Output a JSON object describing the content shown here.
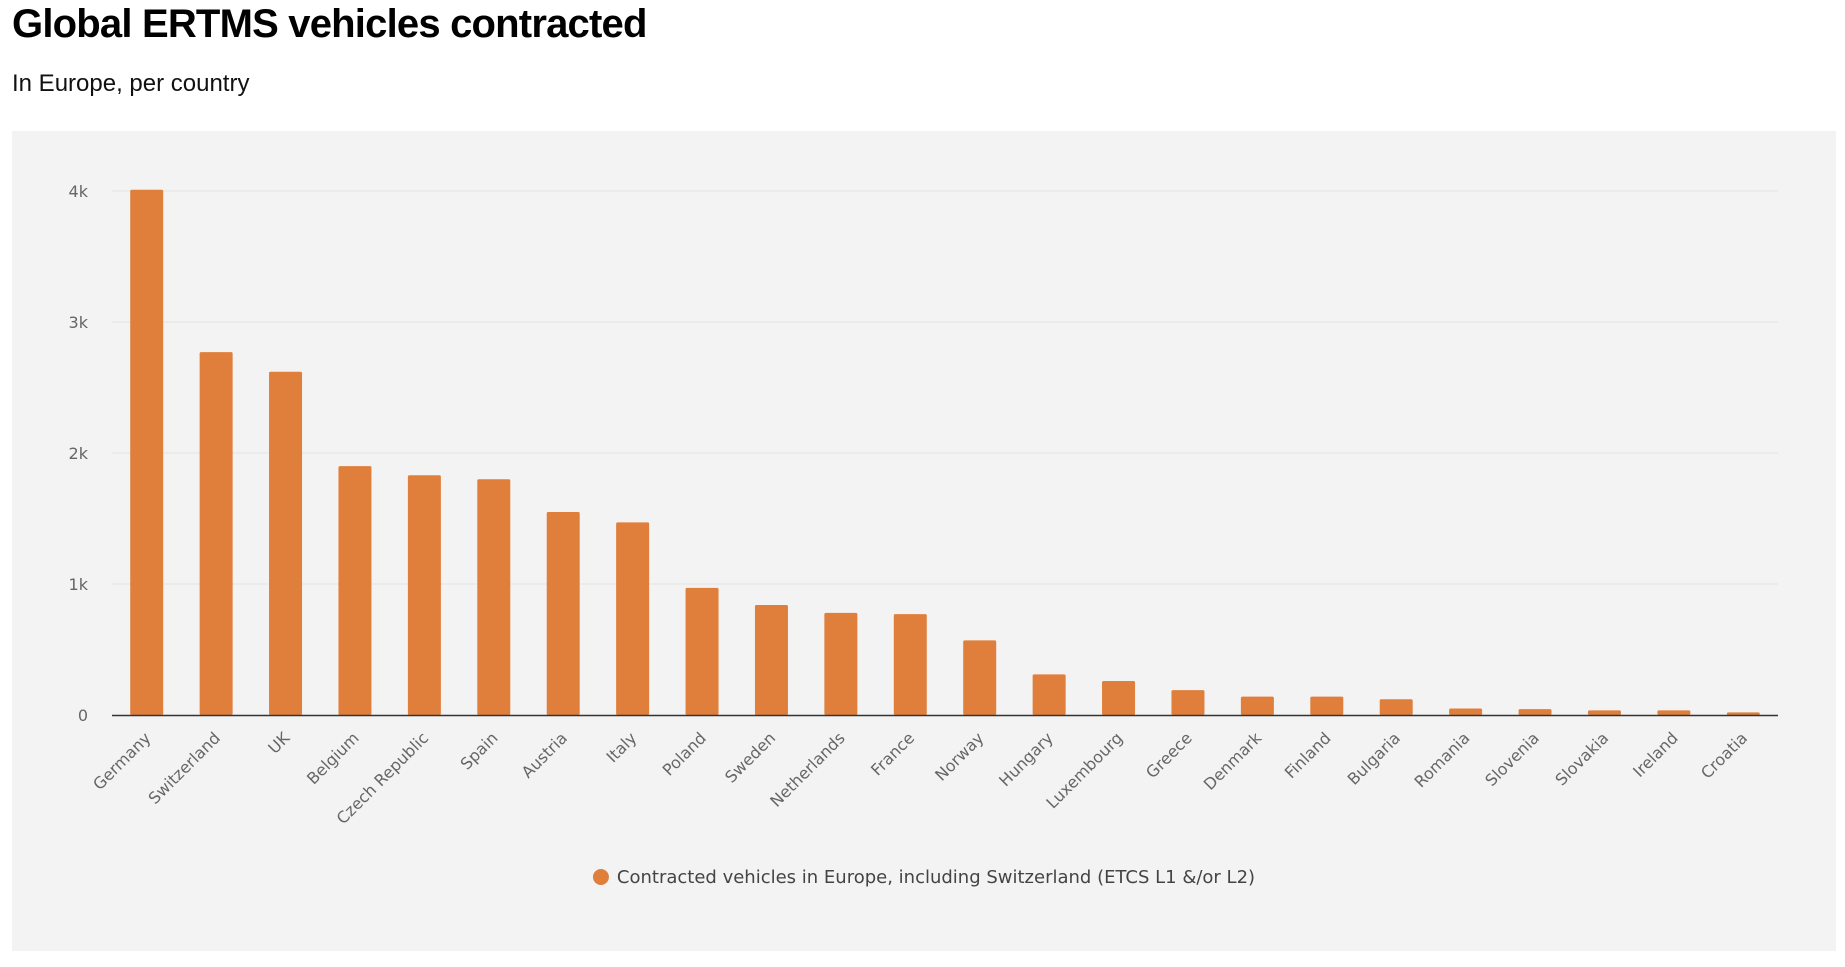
{
  "header": {
    "title": "Global ERTMS vehicles contracted",
    "subtitle": "In Europe, per country"
  },
  "colors": {
    "bar": "#e07f3c",
    "panel_bg": "#f3f3f3",
    "gridline": "#e3e3e3",
    "axis": "#333333"
  },
  "chart_data": {
    "type": "bar",
    "title": "Global ERTMS vehicles contracted",
    "subtitle": "In Europe, per country",
    "xlabel": "",
    "ylabel": "",
    "ylim": [
      0,
      4000
    ],
    "yticks": [
      0,
      1000,
      2000,
      3000,
      4000
    ],
    "ytick_labels": [
      "0",
      "1k",
      "2k",
      "3k",
      "4k"
    ],
    "grid": true,
    "legend_position": "bottom-center",
    "categories": [
      "Germany",
      "Switzerland",
      "UK",
      "Belgium",
      "Czech Republic",
      "Spain",
      "Austria",
      "Italy",
      "Poland",
      "Sweden",
      "Netherlands",
      "France",
      "Norway",
      "Hungary",
      "Luxembourg",
      "Greece",
      "Denmark",
      "Finland",
      "Bulgaria",
      "Romania",
      "Slovenia",
      "Slovakia",
      "Ireland",
      "Croatia"
    ],
    "series": [
      {
        "name": "Contracted vehicles in Europe, including Switzerland (ETCS L1 &/or L2)",
        "color": "#e07f3c",
        "values": [
          4010,
          2770,
          2620,
          1900,
          1830,
          1800,
          1550,
          1470,
          970,
          840,
          780,
          770,
          570,
          310,
          260,
          190,
          140,
          140,
          120,
          50,
          45,
          35,
          35,
          20
        ]
      }
    ]
  }
}
